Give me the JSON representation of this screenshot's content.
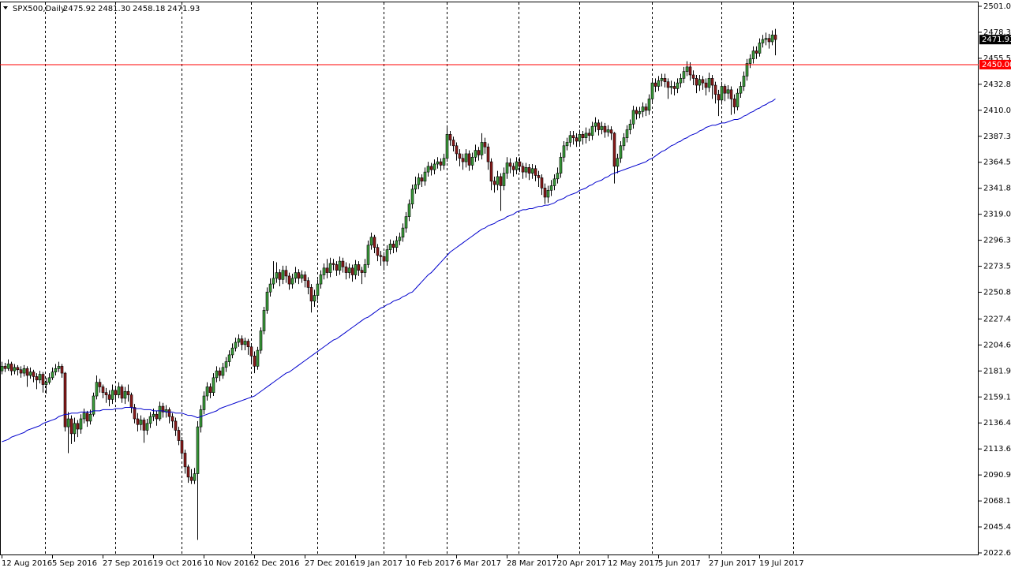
{
  "chart_data": {
    "type": "candlestick",
    "title": "SPX500,Daily",
    "title_ohlc": [
      "2475.92",
      "2481.30",
      "2458.18",
      "2471.93"
    ],
    "categories": [
      "12 Aug 2016",
      null,
      null,
      null,
      null,
      null,
      null,
      null,
      null,
      null,
      null,
      null,
      null,
      null,
      null,
      null,
      "5 Sep 2016",
      null,
      null,
      null,
      null,
      null,
      null,
      null,
      null,
      null,
      null,
      null,
      null,
      null,
      null,
      null,
      "27 Sep 2016",
      null,
      null,
      null,
      null,
      null,
      null,
      null,
      null,
      null,
      null,
      null,
      null,
      null,
      null,
      null,
      "19 Oct 2016",
      null,
      null,
      null,
      null,
      null,
      null,
      null,
      null,
      null,
      null,
      null,
      null,
      null,
      null,
      null,
      "10 Nov 2016",
      null,
      null,
      null,
      null,
      null,
      null,
      null,
      null,
      null,
      null,
      null,
      null,
      null,
      null,
      null,
      "2 Dec 2016",
      null,
      null,
      null,
      null,
      null,
      null,
      null,
      null,
      null,
      null,
      null,
      null,
      null,
      null,
      null,
      "27 Dec 2016",
      null,
      null,
      null,
      null,
      null,
      null,
      null,
      null,
      null,
      null,
      null,
      null,
      null,
      null,
      null,
      "19 Jan 2017",
      null,
      null,
      null,
      null,
      null,
      null,
      null,
      null,
      null,
      null,
      null,
      null,
      null,
      null,
      null,
      "10 Feb 2017",
      null,
      null,
      null,
      null,
      null,
      null,
      null,
      null,
      null,
      null,
      null,
      null,
      null,
      null,
      null,
      "6 Mar 2017",
      null,
      null,
      null,
      null,
      null,
      null,
      null,
      null,
      null,
      null,
      null,
      null,
      null,
      null,
      null,
      "28 Mar 2017",
      null,
      null,
      null,
      null,
      null,
      null,
      null,
      null,
      null,
      null,
      null,
      null,
      null,
      null,
      null,
      "20 Apr 2017",
      null,
      null,
      null,
      null,
      null,
      null,
      null,
      null,
      null,
      null,
      null,
      null,
      null,
      null,
      null,
      "12 May 2017",
      null,
      null,
      null,
      null,
      null,
      null,
      null,
      null,
      null,
      null,
      null,
      null,
      null,
      null,
      null,
      "5 Jun 2017",
      null,
      null,
      null,
      null,
      null,
      null,
      null,
      null,
      null,
      null,
      null,
      null,
      null,
      null,
      null,
      "27 Jun 2017",
      null,
      null,
      null,
      null,
      null,
      null,
      null,
      null,
      null,
      null,
      null,
      null,
      null,
      null,
      null,
      "19 Jul 2017",
      null,
      null,
      null,
      null,
      null
    ],
    "open": [
      2182,
      2186,
      2184,
      2188,
      2182,
      2185,
      2183,
      2180,
      2184,
      2178,
      2181,
      2177,
      2174,
      2179,
      2170,
      2172,
      2176,
      2181,
      2184,
      2186,
      2180,
      2133,
      2140,
      2127,
      2136,
      2131,
      2140,
      2145,
      2138,
      2144,
      2160,
      2172,
      2168,
      2163,
      2161,
      2157,
      2165,
      2161,
      2168,
      2158,
      2164,
      2161,
      2150,
      2140,
      2135,
      2139,
      2130,
      2136,
      2142,
      2144,
      2140,
      2151,
      2146,
      2148,
      2142,
      2138,
      2130,
      2121,
      2110,
      2098,
      2089,
      2086,
      2092,
      2133,
      2148,
      2160,
      2168,
      2163,
      2176,
      2182,
      2178,
      2185,
      2190,
      2196,
      2202,
      2207,
      2210,
      2205,
      2208,
      2203,
      2195,
      2186,
      2200,
      2217,
      2235,
      2251,
      2258,
      2263,
      2268,
      2262,
      2270,
      2265,
      2258,
      2263,
      2268,
      2263,
      2266,
      2261,
      2255,
      2243,
      2248,
      2258,
      2266,
      2272,
      2268,
      2276,
      2275,
      2270,
      2278,
      2273,
      2268,
      2272,
      2266,
      2275,
      2270,
      2268,
      2275,
      2292,
      2299,
      2290,
      2283,
      2282,
      2278,
      2288,
      2293,
      2290,
      2296,
      2299,
      2307,
      2317,
      2328,
      2341,
      2345,
      2351,
      2348,
      2356,
      2361,
      2358,
      2363,
      2365,
      2362,
      2368,
      2389,
      2384,
      2379,
      2372,
      2368,
      2365,
      2372,
      2362,
      2369,
      2375,
      2371,
      2382,
      2378,
      2365,
      2348,
      2345,
      2352,
      2344,
      2355,
      2364,
      2361,
      2358,
      2365,
      2361,
      2356,
      2360,
      2355,
      2359,
      2353,
      2351,
      2342,
      2334,
      2340,
      2344,
      2350,
      2355,
      2369,
      2379,
      2382,
      2388,
      2386,
      2383,
      2389,
      2386,
      2390,
      2388,
      2396,
      2399,
      2393,
      2396,
      2391,
      2393,
      2390,
      2361,
      2368,
      2379,
      2386,
      2393,
      2398,
      2410,
      2407,
      2409,
      2413,
      2410,
      2420,
      2434,
      2431,
      2436,
      2438,
      2435,
      2430,
      2431,
      2429,
      2434,
      2438,
      2444,
      2448,
      2441,
      2438,
      2432,
      2437,
      2434,
      2430,
      2438,
      2432,
      2424,
      2419,
      2431,
      2425,
      2428,
      2420,
      2413,
      2425,
      2431,
      2440,
      2451,
      2455,
      2462,
      2460,
      2469,
      2472,
      2473,
      2470,
      2475.92
    ],
    "high": [
      2190,
      2189,
      2192,
      2190,
      2188,
      2187,
      2186,
      2187,
      2186,
      2185,
      2183,
      2180,
      2182,
      2181,
      2176,
      2180,
      2185,
      2188,
      2190,
      2188,
      2181,
      2146,
      2143,
      2141,
      2139,
      2144,
      2149,
      2147,
      2148,
      2163,
      2178,
      2175,
      2170,
      2167,
      2165,
      2170,
      2168,
      2172,
      2170,
      2168,
      2170,
      2163,
      2153,
      2145,
      2143,
      2141,
      2140,
      2146,
      2149,
      2147,
      2155,
      2154,
      2152,
      2150,
      2145,
      2141,
      2133,
      2124,
      2113,
      2100,
      2096,
      2097,
      2138,
      2152,
      2164,
      2172,
      2171,
      2180,
      2186,
      2185,
      2189,
      2194,
      2200,
      2206,
      2211,
      2214,
      2213,
      2211,
      2210,
      2206,
      2199,
      2203,
      2220,
      2238,
      2255,
      2263,
      2278,
      2277,
      2271,
      2274,
      2274,
      2268,
      2267,
      2273,
      2271,
      2270,
      2269,
      2264,
      2258,
      2253,
      2262,
      2270,
      2276,
      2280,
      2281,
      2280,
      2278,
      2282,
      2281,
      2277,
      2276,
      2275,
      2279,
      2278,
      2273,
      2280,
      2296,
      2303,
      2301,
      2293,
      2287,
      2286,
      2292,
      2297,
      2296,
      2300,
      2303,
      2311,
      2321,
      2332,
      2345,
      2352,
      2355,
      2354,
      2360,
      2365,
      2364,
      2367,
      2369,
      2368,
      2372,
      2396,
      2392,
      2387,
      2382,
      2376,
      2372,
      2376,
      2375,
      2373,
      2380,
      2378,
      2390,
      2386,
      2381,
      2368,
      2352,
      2357,
      2355,
      2360,
      2369,
      2368,
      2364,
      2369,
      2369,
      2364,
      2364,
      2363,
      2363,
      2362,
      2357,
      2354,
      2346,
      2344,
      2349,
      2354,
      2360,
      2373,
      2383,
      2386,
      2392,
      2392,
      2390,
      2393,
      2392,
      2395,
      2394,
      2400,
      2404,
      2402,
      2400,
      2399,
      2397,
      2396,
      2391,
      2372,
      2383,
      2390,
      2397,
      2402,
      2414,
      2413,
      2413,
      2417,
      2416,
      2424,
      2438,
      2438,
      2440,
      2442,
      2442,
      2438,
      2436,
      2435,
      2438,
      2442,
      2448,
      2453,
      2452,
      2445,
      2441,
      2441,
      2440,
      2438,
      2443,
      2441,
      2435,
      2428,
      2435,
      2433,
      2432,
      2431,
      2424,
      2429,
      2435,
      2444,
      2455,
      2459,
      2466,
      2466,
      2473,
      2476,
      2478,
      2477,
      2480,
      2481.3
    ],
    "low": [
      2179,
      2181,
      2182,
      2178,
      2179,
      2178,
      2176,
      2177,
      2168,
      2175,
      2172,
      2166,
      2171,
      2163,
      2162,
      2170,
      2174,
      2178,
      2181,
      2176,
      2129,
      2110,
      2118,
      2120,
      2124,
      2127,
      2136,
      2133,
      2135,
      2142,
      2157,
      2163,
      2158,
      2154,
      2151,
      2153,
      2155,
      2158,
      2154,
      2153,
      2155,
      2145,
      2136,
      2129,
      2130,
      2119,
      2126,
      2132,
      2138,
      2134,
      2138,
      2141,
      2141,
      2136,
      2132,
      2125,
      2117,
      2105,
      2092,
      2084,
      2083,
      2083,
      2034,
      2128,
      2144,
      2156,
      2158,
      2160,
      2172,
      2173,
      2175,
      2181,
      2186,
      2193,
      2199,
      2203,
      2200,
      2200,
      2196,
      2189,
      2180,
      2183,
      2197,
      2214,
      2232,
      2247,
      2254,
      2259,
      2256,
      2258,
      2259,
      2253,
      2254,
      2259,
      2258,
      2259,
      2255,
      2249,
      2233,
      2238,
      2244,
      2254,
      2262,
      2263,
      2264,
      2270,
      2265,
      2266,
      2268,
      2262,
      2263,
      2260,
      2262,
      2265,
      2258,
      2264,
      2272,
      2288,
      2285,
      2278,
      2274,
      2270,
      2274,
      2284,
      2285,
      2286,
      2292,
      2295,
      2303,
      2313,
      2324,
      2337,
      2341,
      2343,
      2344,
      2352,
      2353,
      2354,
      2359,
      2357,
      2358,
      2365,
      2379,
      2374,
      2366,
      2361,
      2358,
      2360,
      2357,
      2358,
      2365,
      2366,
      2367,
      2372,
      2358,
      2340,
      2338,
      2340,
      2322,
      2340,
      2350,
      2355,
      2352,
      2354,
      2356,
      2350,
      2351,
      2349,
      2350,
      2348,
      2343,
      2336,
      2328,
      2329,
      2335,
      2340,
      2346,
      2351,
      2365,
      2375,
      2378,
      2380,
      2378,
      2379,
      2380,
      2381,
      2383,
      2384,
      2391,
      2388,
      2389,
      2386,
      2387,
      2384,
      2346,
      2355,
      2364,
      2375,
      2382,
      2389,
      2394,
      2402,
      2403,
      2404,
      2405,
      2406,
      2416,
      2426,
      2427,
      2431,
      2430,
      2420,
      2424,
      2423,
      2425,
      2430,
      2434,
      2440,
      2436,
      2432,
      2425,
      2427,
      2428,
      2423,
      2426,
      2420,
      2416,
      2405,
      2415,
      2418,
      2420,
      2406,
      2407,
      2410,
      2421,
      2427,
      2436,
      2447,
      2451,
      2455,
      2457,
      2465,
      2467,
      2464,
      2467,
      2458.18
    ],
    "close": [
      2186,
      2184,
      2188,
      2182,
      2185,
      2183,
      2180,
      2184,
      2178,
      2181,
      2177,
      2174,
      2179,
      2170,
      2172,
      2176,
      2181,
      2184,
      2186,
      2180,
      2133,
      2140,
      2127,
      2136,
      2131,
      2140,
      2145,
      2138,
      2144,
      2160,
      2172,
      2168,
      2163,
      2161,
      2157,
      2165,
      2161,
      2168,
      2158,
      2164,
      2161,
      2150,
      2140,
      2135,
      2139,
      2130,
      2136,
      2142,
      2144,
      2140,
      2151,
      2146,
      2148,
      2142,
      2138,
      2130,
      2121,
      2110,
      2098,
      2089,
      2086,
      2092,
      2133,
      2148,
      2160,
      2168,
      2163,
      2176,
      2182,
      2178,
      2185,
      2190,
      2196,
      2202,
      2207,
      2210,
      2205,
      2208,
      2203,
      2195,
      2186,
      2200,
      2217,
      2235,
      2251,
      2258,
      2263,
      2268,
      2262,
      2270,
      2265,
      2258,
      2263,
      2268,
      2263,
      2266,
      2261,
      2255,
      2243,
      2248,
      2258,
      2266,
      2272,
      2268,
      2276,
      2275,
      2270,
      2278,
      2273,
      2268,
      2272,
      2266,
      2275,
      2270,
      2268,
      2275,
      2292,
      2299,
      2290,
      2283,
      2282,
      2278,
      2288,
      2293,
      2290,
      2296,
      2299,
      2307,
      2317,
      2328,
      2341,
      2345,
      2351,
      2348,
      2356,
      2361,
      2358,
      2363,
      2365,
      2362,
      2368,
      2389,
      2384,
      2379,
      2372,
      2368,
      2365,
      2372,
      2362,
      2369,
      2375,
      2371,
      2382,
      2378,
      2365,
      2348,
      2345,
      2352,
      2344,
      2355,
      2364,
      2361,
      2358,
      2365,
      2361,
      2356,
      2360,
      2355,
      2359,
      2353,
      2351,
      2342,
      2334,
      2340,
      2344,
      2350,
      2355,
      2369,
      2379,
      2382,
      2388,
      2386,
      2383,
      2389,
      2386,
      2390,
      2388,
      2396,
      2399,
      2393,
      2396,
      2391,
      2393,
      2390,
      2361,
      2368,
      2379,
      2386,
      2393,
      2398,
      2410,
      2407,
      2409,
      2413,
      2410,
      2420,
      2434,
      2431,
      2436,
      2438,
      2435,
      2430,
      2431,
      2429,
      2434,
      2438,
      2444,
      2448,
      2441,
      2438,
      2432,
      2437,
      2434,
      2430,
      2438,
      2432,
      2424,
      2419,
      2431,
      2425,
      2428,
      2420,
      2413,
      2425,
      2431,
      2440,
      2451,
      2455,
      2462,
      2460,
      2469,
      2472,
      2473,
      2470,
      2476,
      2471.93
    ],
    "up_color": "#3a9d3a",
    "down_color": "#8b1a1a",
    "ma": {
      "color": "#0000cd",
      "values": [
        2120,
        2121,
        2122,
        2124,
        2125,
        2126,
        2127,
        2128,
        2130,
        2131,
        2132,
        2133,
        2134,
        2136,
        2137,
        2138,
        2139,
        2140,
        2142,
        2143,
        2144,
        2144,
        2145,
        2145,
        2145,
        2146,
        2146,
        2146,
        2146,
        2147,
        2147,
        2147,
        2148,
        2148,
        2148,
        2148,
        2149,
        2149,
        2149,
        2150,
        2150,
        2150,
        2149,
        2149,
        2149,
        2148,
        2148,
        2148,
        2147,
        2147,
        2147,
        2147,
        2146,
        2146,
        2146,
        2145,
        2145,
        2145,
        2144,
        2143,
        2143,
        2142,
        2141,
        2142,
        2143,
        2144,
        2145,
        2146,
        2147,
        2149,
        2150,
        2151,
        2152,
        2153,
        2154,
        2155,
        2156,
        2157,
        2158,
        2159,
        2160,
        2162,
        2164,
        2166,
        2168,
        2170,
        2172,
        2174,
        2176,
        2178,
        2180,
        2181,
        2183,
        2185,
        2187,
        2189,
        2191,
        2193,
        2195,
        2197,
        2199,
        2201,
        2203,
        2205,
        2207,
        2209,
        2210,
        2212,
        2214,
        2216,
        2218,
        2220,
        2222,
        2224,
        2226,
        2228,
        2229,
        2231,
        2233,
        2235,
        2237,
        2238,
        2240,
        2241,
        2243,
        2244,
        2245,
        2247,
        2248,
        2250,
        2251,
        2254,
        2257,
        2260,
        2263,
        2266,
        2268,
        2271,
        2274,
        2277,
        2280,
        2283,
        2286,
        2288,
        2290,
        2292,
        2294,
        2296,
        2298,
        2300,
        2302,
        2304,
        2306,
        2307,
        2309,
        2310,
        2311,
        2313,
        2314,
        2315,
        2317,
        2318,
        2319,
        2321,
        2322,
        2323,
        2323,
        2324,
        2324,
        2325,
        2326,
        2326,
        2327,
        2327,
        2328,
        2329,
        2331,
        2332,
        2333,
        2335,
        2336,
        2337,
        2338,
        2340,
        2341,
        2342,
        2344,
        2345,
        2347,
        2348,
        2349,
        2351,
        2352,
        2354,
        2355,
        2356,
        2357,
        2358,
        2359,
        2360,
        2361,
        2362,
        2363,
        2364,
        2365,
        2367,
        2368,
        2370,
        2372,
        2374,
        2375,
        2377,
        2379,
        2380,
        2382,
        2383,
        2385,
        2386,
        2388,
        2389,
        2390,
        2392,
        2393,
        2395,
        2396,
        2397,
        2397,
        2398,
        2399,
        2399,
        2400,
        2401,
        2402,
        2402,
        2403,
        2405,
        2406,
        2408,
        2409,
        2411,
        2412,
        2414,
        2415,
        2417,
        2418,
        2420
      ]
    },
    "hline": {
      "value": 2450,
      "label": "2450.00",
      "color": "#ff0000"
    },
    "last_label": "2471.93",
    "ylim": [
      2020.58,
      2505.19
    ],
    "yticks": [
      2501.05,
      {
        "value": 2478.3,
        "label": "2478.30"
      },
      2455.55,
      {
        "value": 2432.8,
        "label": "2432.80"
      },
      2410.05,
      {
        "value": 2387.3,
        "label": "2387.30"
      },
      2364.55,
      {
        "value": 2341.8,
        "label": "2341.80"
      },
      2319.05,
      {
        "value": 2296.3,
        "label": "2296.30"
      },
      2273.55,
      {
        "value": 2250.8,
        "label": "2250.80"
      },
      {
        "value": 2227.4,
        "label": "2227.40"
      },
      2204.65,
      {
        "value": 2181.9,
        "label": "2181.90"
      },
      2159.15,
      {
        "value": 2136.4,
        "label": "2136.40"
      },
      2113.65,
      {
        "value": 2090.9,
        "label": "2090.90"
      },
      2068.15,
      {
        "value": 2045.4,
        "label": "2045.40"
      },
      2022.65
    ]
  }
}
